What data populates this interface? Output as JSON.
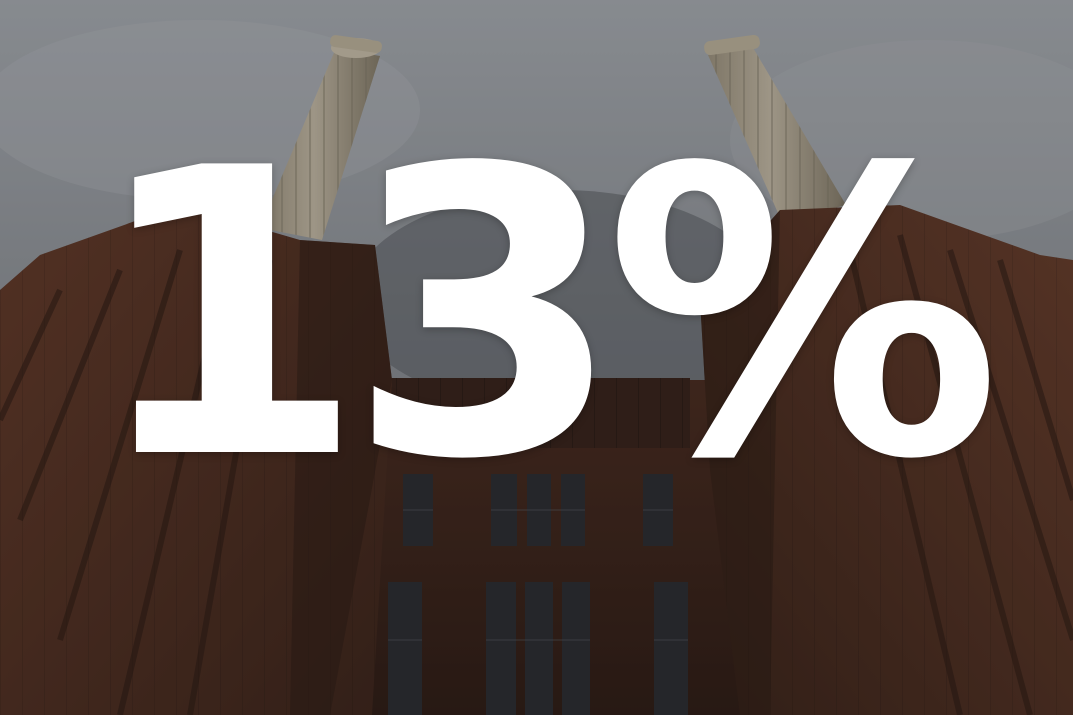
{
  "headline": "13%",
  "colors": {
    "sky": "#a7acb1",
    "sky_dark": "#6d7176",
    "brick": "#5a3424",
    "brick_dark": "#3b2217",
    "chimney": "#c9bea7",
    "chimney_shadow": "#9d927c",
    "window": "#2a2c30",
    "text": "#ffffff",
    "overlay": "rgba(20,20,24,0.28)"
  }
}
